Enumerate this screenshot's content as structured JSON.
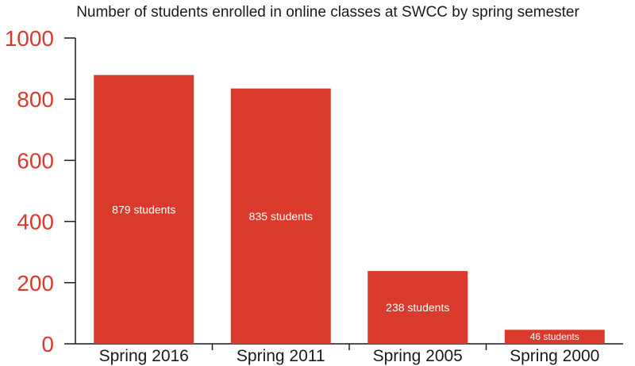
{
  "chart_data": {
    "type": "bar",
    "title": "Number of students enrolled in online classes at SWCC by spring semester",
    "xlabel": "",
    "ylabel": "",
    "categories": [
      "Spring 2016",
      "Spring 2011",
      "Spring 2005",
      "Spring 2000"
    ],
    "values": [
      879,
      835,
      238,
      46
    ],
    "data_labels": [
      "879 students",
      "835 students",
      "238 students",
      "46 students"
    ],
    "ylim": [
      0,
      1000
    ],
    "yticks": [
      0,
      200,
      400,
      600,
      800,
      1000
    ],
    "grid": false,
    "legend": "none",
    "colors": {
      "bar": "#d93a2b",
      "tick_label": "#d93a2b",
      "axis": "#1a1a1a",
      "data_label": "#ffffff"
    }
  }
}
